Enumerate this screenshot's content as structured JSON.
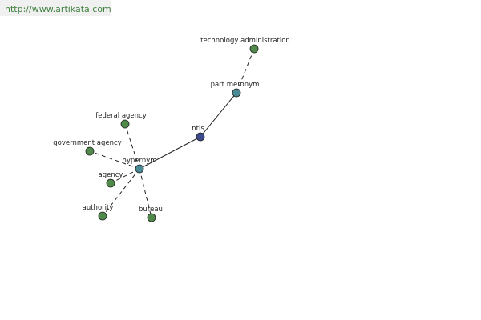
{
  "header": {
    "url": "http://www.artikata.com"
  },
  "nodes": [
    {
      "label": "ntis"
    },
    {
      "label": "part meronym"
    },
    {
      "label": "technology administration"
    },
    {
      "label": "hypernym"
    },
    {
      "label": "federal agency"
    },
    {
      "label": "government agency"
    },
    {
      "label": "agency"
    },
    {
      "label": "authority"
    },
    {
      "label": "bureau"
    }
  ]
}
